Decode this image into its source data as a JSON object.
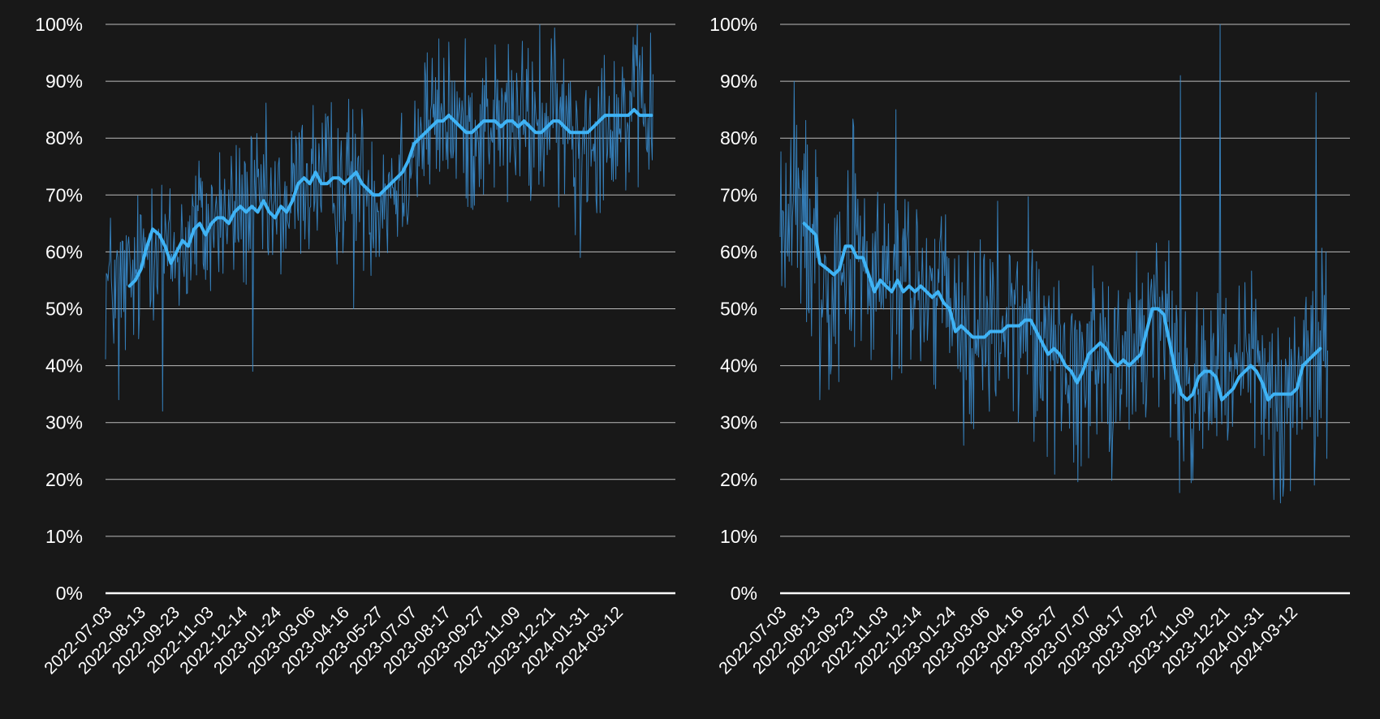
{
  "colors": {
    "background": "#181818",
    "gridline": "#d8d8d8",
    "baseline": "#ffffff",
    "raw_series": "#3a8fd4",
    "smoothed_series": "#3fb3f5",
    "tick_text": "#ffffff"
  },
  "chart_data": [
    {
      "type": "line",
      "title": "",
      "xlabel": "",
      "ylabel": "",
      "x_start": "2022-07-03",
      "x_end": "2024-04-25",
      "xlim": [
        "2022-07-03",
        "2024-05-22"
      ],
      "x_ticks": [
        "2022-07-03",
        "2022-08-13",
        "2022-09-23",
        "2022-11-03",
        "2022-12-14",
        "2023-01-24",
        "2023-03-06",
        "2023-04-16",
        "2023-05-27",
        "2023-07-07",
        "2023-08-17",
        "2023-09-27",
        "2023-11-09",
        "2023-12-21",
        "2024-01-31",
        "2024-03-12"
      ],
      "ylim": [
        0,
        100
      ],
      "y_ticks": [
        "0%",
        "10%",
        "20%",
        "30%",
        "40%",
        "50%",
        "60%",
        "70%",
        "80%",
        "90%",
        "100%"
      ],
      "grid": true,
      "legend": "none",
      "series": [
        {
          "kind": "daily",
          "noise": 7,
          "spikes": [
            [
              "2022-09-10",
              32
            ],
            [
              "2022-07-19",
              34
            ],
            [
              "2022-12-28",
              39
            ],
            [
              "2023-12-10",
              100
            ],
            [
              "2024-01-28",
              59
            ],
            [
              "2024-01-22",
              63
            ],
            [
              "2024-04-12",
              96
            ],
            [
              "2023-07-27",
              95
            ],
            [
              "2023-04-29",
              50
            ]
          ]
        },
        {
          "kind": "rolling-average",
          "points": [
            [
              "2022-08-01",
              54
            ],
            [
              "2022-08-08",
              55
            ],
            [
              "2022-08-15",
              57
            ],
            [
              "2022-08-20",
              60
            ],
            [
              "2022-08-29",
              64
            ],
            [
              "2022-09-06",
              63
            ],
            [
              "2022-09-13",
              61
            ],
            [
              "2022-09-20",
              58
            ],
            [
              "2022-09-27",
              60
            ],
            [
              "2022-10-04",
              62
            ],
            [
              "2022-10-11",
              61
            ],
            [
              "2022-10-18",
              64
            ],
            [
              "2022-10-25",
              65
            ],
            [
              "2022-11-01",
              63
            ],
            [
              "2022-11-08",
              65
            ],
            [
              "2022-11-15",
              66
            ],
            [
              "2022-11-22",
              66
            ],
            [
              "2022-11-29",
              65
            ],
            [
              "2022-12-06",
              67
            ],
            [
              "2022-12-13",
              68
            ],
            [
              "2022-12-20",
              67
            ],
            [
              "2022-12-27",
              68
            ],
            [
              "2023-01-03",
              67
            ],
            [
              "2023-01-10",
              69
            ],
            [
              "2023-01-17",
              67
            ],
            [
              "2023-01-24",
              66
            ],
            [
              "2023-01-31",
              68
            ],
            [
              "2023-02-07",
              67
            ],
            [
              "2023-02-14",
              69
            ],
            [
              "2023-02-21",
              72
            ],
            [
              "2023-02-28",
              73
            ],
            [
              "2023-03-07",
              72
            ],
            [
              "2023-03-14",
              74
            ],
            [
              "2023-03-21",
              72
            ],
            [
              "2023-03-28",
              72
            ],
            [
              "2023-04-04",
              73
            ],
            [
              "2023-04-11",
              73
            ],
            [
              "2023-04-18",
              72
            ],
            [
              "2023-04-25",
              73
            ],
            [
              "2023-05-02",
              74
            ],
            [
              "2023-05-09",
              72
            ],
            [
              "2023-05-16",
              71
            ],
            [
              "2023-05-23",
              70
            ],
            [
              "2023-05-30",
              70
            ],
            [
              "2023-06-06",
              71
            ],
            [
              "2023-06-13",
              72
            ],
            [
              "2023-06-20",
              73
            ],
            [
              "2023-06-27",
              74
            ],
            [
              "2023-07-04",
              76
            ],
            [
              "2023-07-11",
              79
            ],
            [
              "2023-07-18",
              80
            ],
            [
              "2023-07-25",
              81
            ],
            [
              "2023-08-01",
              82
            ],
            [
              "2023-08-08",
              83
            ],
            [
              "2023-08-15",
              83
            ],
            [
              "2023-08-22",
              84
            ],
            [
              "2023-08-29",
              83
            ],
            [
              "2023-09-05",
              82
            ],
            [
              "2023-09-12",
              81
            ],
            [
              "2023-09-19",
              81
            ],
            [
              "2023-09-26",
              82
            ],
            [
              "2023-10-03",
              83
            ],
            [
              "2023-10-10",
              83
            ],
            [
              "2023-10-17",
              83
            ],
            [
              "2023-10-24",
              82
            ],
            [
              "2023-10-31",
              83
            ],
            [
              "2023-11-07",
              83
            ],
            [
              "2023-11-14",
              82
            ],
            [
              "2023-11-21",
              83
            ],
            [
              "2023-11-28",
              82
            ],
            [
              "2023-12-05",
              81
            ],
            [
              "2023-12-12",
              81
            ],
            [
              "2023-12-19",
              82
            ],
            [
              "2023-12-26",
              83
            ],
            [
              "2024-01-02",
              83
            ],
            [
              "2024-01-09",
              82
            ],
            [
              "2024-01-16",
              81
            ],
            [
              "2024-01-23",
              81
            ],
            [
              "2024-01-30",
              81
            ],
            [
              "2024-02-06",
              81
            ],
            [
              "2024-02-13",
              82
            ],
            [
              "2024-02-20",
              83
            ],
            [
              "2024-02-27",
              84
            ],
            [
              "2024-03-05",
              84
            ],
            [
              "2024-03-12",
              84
            ],
            [
              "2024-03-19",
              84
            ],
            [
              "2024-03-26",
              84
            ],
            [
              "2024-04-02",
              85
            ],
            [
              "2024-04-09",
              84
            ],
            [
              "2024-04-16",
              84
            ],
            [
              "2024-04-23",
              84
            ]
          ]
        }
      ]
    },
    {
      "type": "line",
      "title": "",
      "xlabel": "",
      "ylabel": "",
      "x_start": "2022-07-03",
      "x_end": "2024-04-25",
      "xlim": [
        "2022-07-03",
        "2024-05-22"
      ],
      "x_ticks": [
        "2022-07-03",
        "2022-08-13",
        "2022-09-23",
        "2022-11-03",
        "2022-12-14",
        "2023-01-24",
        "2023-03-06",
        "2023-04-16",
        "2023-05-27",
        "2023-07-07",
        "2023-08-17",
        "2023-09-27",
        "2023-11-09",
        "2023-12-21",
        "2024-01-31",
        "2024-03-12"
      ],
      "ylim": [
        0,
        100
      ],
      "y_ticks": [
        "0%",
        "10%",
        "20%",
        "30%",
        "40%",
        "50%",
        "60%",
        "70%",
        "80%",
        "90%",
        "100%"
      ],
      "grid": true,
      "legend": "none",
      "series": [
        {
          "kind": "daily",
          "noise": 9,
          "spikes": [
            [
              "2022-07-20",
              90
            ],
            [
              "2022-09-30",
              82
            ],
            [
              "2022-11-20",
              85
            ],
            [
              "2023-10-30",
              91
            ],
            [
              "2023-12-17",
              100
            ],
            [
              "2024-04-11",
              88
            ],
            [
              "2024-04-09",
              19
            ],
            [
              "2023-02-10",
              26
            ],
            [
              "2022-08-20",
              34
            ]
          ]
        },
        {
          "kind": "rolling-average",
          "points": [
            [
              "2022-08-01",
              65
            ],
            [
              "2022-08-08",
              64
            ],
            [
              "2022-08-15",
              63
            ],
            [
              "2022-08-20",
              58
            ],
            [
              "2022-08-29",
              57
            ],
            [
              "2022-09-06",
              56
            ],
            [
              "2022-09-13",
              57
            ],
            [
              "2022-09-20",
              61
            ],
            [
              "2022-09-27",
              61
            ],
            [
              "2022-10-04",
              59
            ],
            [
              "2022-10-11",
              59
            ],
            [
              "2022-10-18",
              56
            ],
            [
              "2022-10-25",
              53
            ],
            [
              "2022-11-01",
              55
            ],
            [
              "2022-11-08",
              54
            ],
            [
              "2022-11-15",
              53
            ],
            [
              "2022-11-22",
              55
            ],
            [
              "2022-11-29",
              53
            ],
            [
              "2022-12-06",
              54
            ],
            [
              "2022-12-13",
              53
            ],
            [
              "2022-12-20",
              54
            ],
            [
              "2022-12-27",
              53
            ],
            [
              "2023-01-03",
              52
            ],
            [
              "2023-01-10",
              53
            ],
            [
              "2023-01-17",
              51
            ],
            [
              "2023-01-24",
              50
            ],
            [
              "2023-01-31",
              46
            ],
            [
              "2023-02-07",
              47
            ],
            [
              "2023-02-14",
              46
            ],
            [
              "2023-02-21",
              45
            ],
            [
              "2023-02-28",
              45
            ],
            [
              "2023-03-07",
              45
            ],
            [
              "2023-03-14",
              46
            ],
            [
              "2023-03-21",
              46
            ],
            [
              "2023-03-28",
              46
            ],
            [
              "2023-04-04",
              47
            ],
            [
              "2023-04-11",
              47
            ],
            [
              "2023-04-18",
              47
            ],
            [
              "2023-04-25",
              48
            ],
            [
              "2023-05-02",
              48
            ],
            [
              "2023-05-09",
              46
            ],
            [
              "2023-05-16",
              44
            ],
            [
              "2023-05-23",
              42
            ],
            [
              "2023-05-30",
              43
            ],
            [
              "2023-06-06",
              42
            ],
            [
              "2023-06-13",
              40
            ],
            [
              "2023-06-20",
              39
            ],
            [
              "2023-06-27",
              37
            ],
            [
              "2023-07-04",
              39
            ],
            [
              "2023-07-11",
              42
            ],
            [
              "2023-07-18",
              43
            ],
            [
              "2023-07-25",
              44
            ],
            [
              "2023-08-01",
              43
            ],
            [
              "2023-08-08",
              41
            ],
            [
              "2023-08-15",
              40
            ],
            [
              "2023-08-22",
              41
            ],
            [
              "2023-08-29",
              40
            ],
            [
              "2023-09-05",
              41
            ],
            [
              "2023-09-12",
              42
            ],
            [
              "2023-09-19",
              46
            ],
            [
              "2023-09-26",
              50
            ],
            [
              "2023-10-03",
              50
            ],
            [
              "2023-10-10",
              49
            ],
            [
              "2023-10-17",
              44
            ],
            [
              "2023-10-24",
              39
            ],
            [
              "2023-10-31",
              35
            ],
            [
              "2023-11-07",
              34
            ],
            [
              "2023-11-14",
              35
            ],
            [
              "2023-11-21",
              38
            ],
            [
              "2023-11-28",
              39
            ],
            [
              "2023-12-05",
              39
            ],
            [
              "2023-12-12",
              38
            ],
            [
              "2023-12-19",
              34
            ],
            [
              "2023-12-26",
              35
            ],
            [
              "2024-01-02",
              36
            ],
            [
              "2024-01-09",
              38
            ],
            [
              "2024-01-16",
              39
            ],
            [
              "2024-01-23",
              40
            ],
            [
              "2024-01-30",
              39
            ],
            [
              "2024-02-06",
              37
            ],
            [
              "2024-02-13",
              34
            ],
            [
              "2024-02-20",
              35
            ],
            [
              "2024-02-27",
              35
            ],
            [
              "2024-03-05",
              35
            ],
            [
              "2024-03-12",
              35
            ],
            [
              "2024-03-19",
              36
            ],
            [
              "2024-03-26",
              40
            ],
            [
              "2024-04-02",
              41
            ],
            [
              "2024-04-09",
              42
            ],
            [
              "2024-04-16",
              43
            ]
          ]
        }
      ]
    }
  ]
}
